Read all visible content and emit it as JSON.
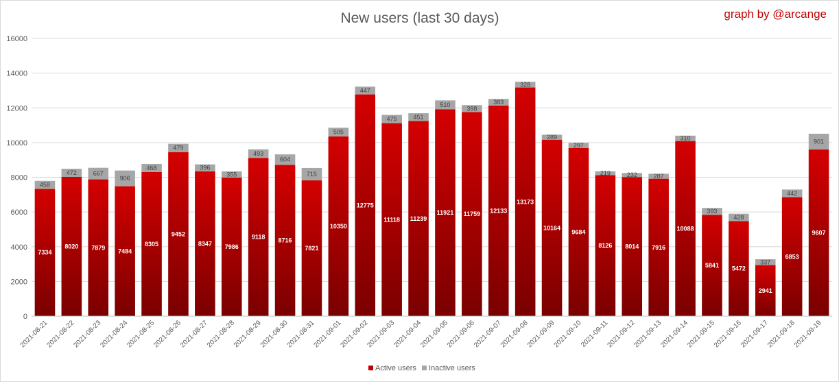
{
  "chart_data": {
    "type": "bar",
    "stacked": true,
    "title": "New users (last 30 days)",
    "credit": "graph by @arcange",
    "categories": [
      "2021-08-21",
      "2021-08-22",
      "2021-08-23",
      "2021-08-24",
      "2021-08-25",
      "2021-08-26",
      "2021-08-27",
      "2021-08-28",
      "2021-08-29",
      "2021-08-30",
      "2021-08-31",
      "2021-09-01",
      "2021-09-02",
      "2021-09-03",
      "2021-09-04",
      "2021-09-05",
      "2021-09-06",
      "2021-09-07",
      "2021-09-08",
      "2021-09-09",
      "2021-09-10",
      "2021-09-11",
      "2021-09-12",
      "2021-09-13",
      "2021-09-14",
      "2021-09-15",
      "2021-09-16",
      "2021-09-17",
      "2021-09-18",
      "2021-09-19"
    ],
    "series": [
      {
        "name": "Active users",
        "color": "#c00000",
        "values": [
          7334,
          8020,
          7879,
          7484,
          8305,
          9452,
          8347,
          7986,
          9118,
          8716,
          7821,
          10350,
          12775,
          11118,
          11239,
          11921,
          11759,
          12133,
          13173,
          10164,
          9684,
          8126,
          8014,
          7916,
          10088,
          5841,
          5472,
          2941,
          6853,
          9607
        ]
      },
      {
        "name": "Inactive users",
        "color": "#a6a6a6",
        "values": [
          458,
          472,
          667,
          906,
          468,
          479,
          396,
          355,
          493,
          604,
          715,
          505,
          447,
          475,
          451,
          510,
          398,
          383,
          328,
          289,
          297,
          219,
          232,
          287,
          310,
          393,
          428,
          337,
          442,
          901
        ]
      }
    ],
    "yticks": [
      "0",
      "2000",
      "4000",
      "6000",
      "8000",
      "10000",
      "12000",
      "14000",
      "16000"
    ],
    "ylim": [
      0,
      16000
    ],
    "grid": true,
    "legend_position": "bottom"
  }
}
